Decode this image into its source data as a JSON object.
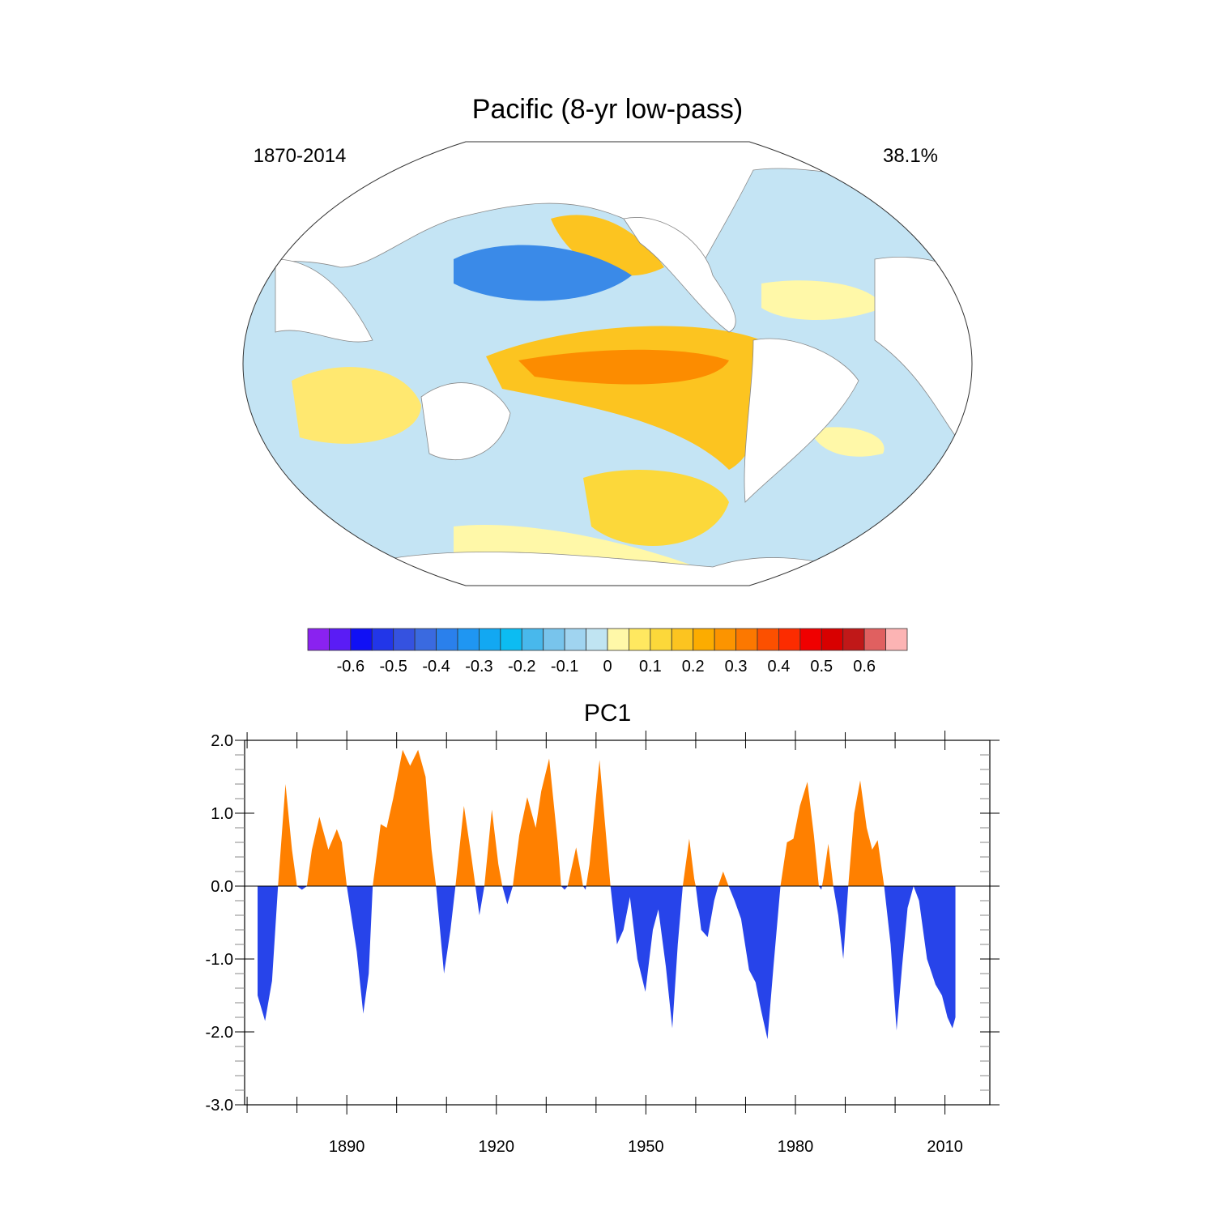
{
  "chart_data": [
    {
      "type": "map",
      "title": "Pacific (8-yr low-pass)",
      "left_label": "1870-2014",
      "right_label": "38.1%",
      "colorbar": {
        "colors": [
          "#8a22f0",
          "#5a1cf5",
          "#1010f5",
          "#2236e8",
          "#3552e0",
          "#3a6ae0",
          "#2a80ec",
          "#1f96f2",
          "#12a8f2",
          "#0cbcf2",
          "#48b8ec",
          "#78c4ec",
          "#a0d4f0",
          "#c0e4f2",
          "#fff8a8",
          "#ffe860",
          "#fcd83a",
          "#fcc420",
          "#fcac00",
          "#fc9400",
          "#fc7800",
          "#fc5000",
          "#fc2c00",
          "#f00000",
          "#d80000",
          "#c01818",
          "#e06060",
          "#fcb4b4"
        ],
        "ticks": [
          -0.6,
          -0.5,
          -0.4,
          -0.3,
          -0.2,
          -0.1,
          0,
          0.1,
          0.2,
          0.3,
          0.4,
          0.5,
          0.6
        ]
      }
    },
    {
      "type": "area",
      "title": "PC1",
      "positive_color": "#ff8000",
      "negative_color": "#2744ea",
      "xlim": [
        1869.5,
        2019
      ],
      "xticks": [
        1890,
        1920,
        1950,
        1980,
        2010
      ],
      "ylim": [
        -3,
        2
      ],
      "yticks": [
        {
          "value": 2,
          "label": "2.0"
        },
        {
          "value": 1,
          "label": "1.0"
        },
        {
          "value": 0,
          "label": "0.0"
        },
        {
          "value": -1,
          "label": "-1.0"
        },
        {
          "value": -2,
          "label": "-2.0"
        },
        {
          "value": -3,
          "label": "-3.0"
        }
      ],
      "x": [
        1872.1,
        1873.6,
        1875,
        1876.2,
        1877.7,
        1879,
        1880,
        1881,
        1882,
        1883,
        1884.5,
        1886.3,
        1888,
        1889,
        1890,
        1892,
        1893.3,
        1894.4,
        1895.2,
        1896.8,
        1898,
        1899.3,
        1901.2,
        1902.7,
        1904.3,
        1905.8,
        1907,
        1907.9,
        1909.5,
        1910.8,
        1911.8,
        1913.5,
        1915,
        1915.8,
        1916.6,
        1917.6,
        1919.1,
        1920.4,
        1921.2,
        1922.2,
        1923.3,
        1924.6,
        1926.2,
        1927.9,
        1929,
        1930.6,
        1932.3,
        1933,
        1933.7,
        1934.3,
        1936,
        1936.9,
        1937.4,
        1937.9,
        1938.7,
        1940.7,
        1942,
        1942.9,
        1944.2,
        1945.5,
        1946.8,
        1948.3,
        1949.9,
        1951.4,
        1952.5,
        1954,
        1955.3,
        1956.4,
        1957.4,
        1958.7,
        1959.7,
        1960,
        1961.1,
        1962.4,
        1963.7,
        1964.5,
        1965.5,
        1966.6,
        1967.8,
        1969.1,
        1970.7,
        1972,
        1973.1,
        1974.4,
        1975.6,
        1977,
        1978.3,
        1979.6,
        1980.9,
        1982.4,
        1983.7,
        1984.7,
        1985.2,
        1985.6,
        1986.6,
        1987.6,
        1988.6,
        1989.6,
        1990.6,
        1991.8,
        1993,
        1994.3,
        1995.4,
        1996.5,
        1997.8,
        1999.1,
        2000.3,
        2001.4,
        2002.5,
        2003.7,
        2004.8,
        2006.4,
        2008.1,
        2009.4,
        2010.5,
        2011.5,
        2012.1
      ],
      "values": [
        -1.5,
        -1.85,
        -1.3,
        0,
        1.4,
        0.5,
        0,
        -0.05,
        0,
        0.5,
        0.95,
        0.5,
        0.78,
        0.6,
        0,
        -0.9,
        -1.75,
        -1.2,
        0,
        0.85,
        0.8,
        1.2,
        1.87,
        1.65,
        1.87,
        1.5,
        0.5,
        0,
        -1.2,
        -0.6,
        0,
        1.1,
        0.4,
        0,
        -0.4,
        0,
        1.05,
        0.3,
        0,
        -0.25,
        0,
        0.7,
        1.22,
        0.8,
        1.3,
        1.75,
        0.6,
        0,
        -0.05,
        0,
        0.53,
        0.2,
        0,
        -0.05,
        0.3,
        1.73,
        0.7,
        0,
        -0.8,
        -0.6,
        -0.15,
        -1.0,
        -1.45,
        -0.6,
        -0.32,
        -1.1,
        -1.95,
        -0.8,
        0,
        0.65,
        0.1,
        0,
        -0.6,
        -0.7,
        -0.2,
        0,
        0.2,
        0,
        -0.2,
        -0.45,
        -1.15,
        -1.32,
        -1.7,
        -2.1,
        -1.1,
        0,
        0.6,
        0.65,
        1.1,
        1.43,
        0.7,
        0,
        -0.05,
        0.1,
        0.58,
        0,
        -0.4,
        -1.0,
        0,
        1.0,
        1.45,
        0.8,
        0.5,
        0.63,
        0,
        -0.8,
        -1.98,
        -1.1,
        -0.3,
        0,
        -0.2,
        -1.0,
        -1.35,
        -1.5,
        -1.8,
        -1.95,
        -1.8
      ]
    }
  ]
}
